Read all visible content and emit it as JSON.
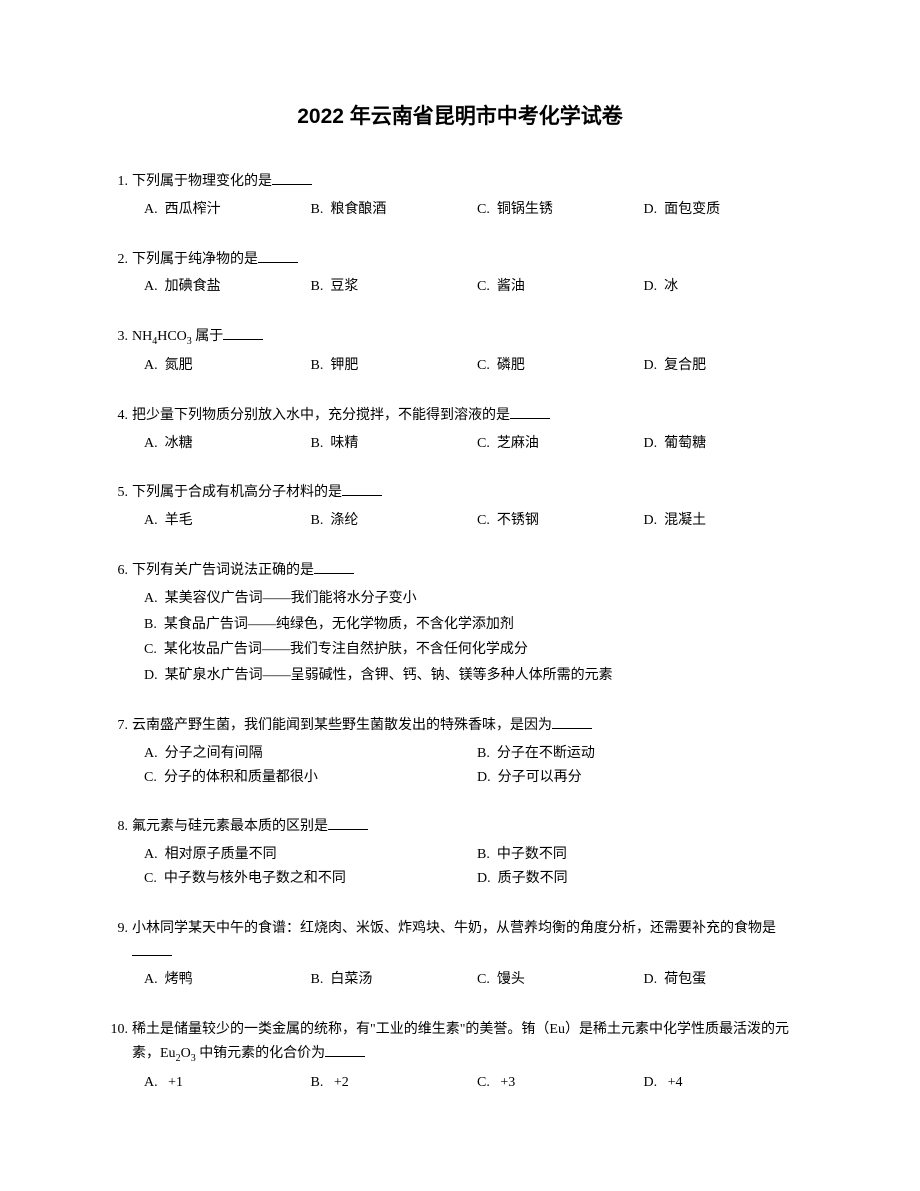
{
  "title": "2022 年云南省昆明市中考化学试卷",
  "questions": [
    {
      "num": "1.",
      "stem": "下列属于物理变化的是",
      "layout": "4",
      "opts": {
        "A": "西瓜榨汁",
        "B": "粮食酿酒",
        "C": "铜锅生锈",
        "D": "面包变质"
      }
    },
    {
      "num": "2.",
      "stem": "下列属于纯净物的是",
      "layout": "4",
      "opts": {
        "A": "加碘食盐",
        "B": "豆浆",
        "C": "酱油",
        "D": "冰"
      }
    },
    {
      "num": "3.",
      "stem_html": "NH<span class='sub'>4</span>HCO<span class='sub'>3</span> 属于",
      "layout": "4",
      "opts": {
        "A": "氮肥",
        "B": "钾肥",
        "C": "磷肥",
        "D": "复合肥"
      }
    },
    {
      "num": "4.",
      "stem": "把少量下列物质分别放入水中，充分搅拌，不能得到溶液的是",
      "layout": "4",
      "opts": {
        "A": "冰糖",
        "B": "味精",
        "C": "芝麻油",
        "D": "葡萄糖"
      }
    },
    {
      "num": "5.",
      "stem": "下列属于合成有机高分子材料的是",
      "layout": "4",
      "opts": {
        "A": "羊毛",
        "B": "涤纶",
        "C": "不锈钢",
        "D": "混凝土"
      }
    },
    {
      "num": "6.",
      "stem": "下列有关广告词说法正确的是",
      "layout": "1",
      "opts": {
        "A": "某美容仪广告词——我们能将水分子变小",
        "B": "某食品广告词——纯绿色，无化学物质，不含化学添加剂",
        "C": "某化妆品广告词——我们专注自然护肤，不含任何化学成分",
        "D": "某矿泉水广告词——呈弱碱性，含钾、钙、钠、镁等多种人体所需的元素"
      }
    },
    {
      "num": "7.",
      "stem": "云南盛产野生菌，我们能闻到某些野生菌散发出的特殊香味，是因为",
      "layout": "2",
      "opts": {
        "A": "分子之间有间隔",
        "B": "分子在不断运动",
        "C": "分子的体积和质量都很小",
        "D": "分子可以再分"
      }
    },
    {
      "num": "8.",
      "stem": "氟元素与硅元素最本质的区别是",
      "layout": "2",
      "opts": {
        "A": "相对原子质量不同",
        "B": "中子数不同",
        "C": "中子数与核外电子数之和不同",
        "D": "质子数不同"
      }
    },
    {
      "num": "9.",
      "stem": "小林同学某天中午的食谱：红烧肉、米饭、炸鸡块、牛奶，从营养均衡的角度分析，还需要补充的食物是",
      "layout": "4",
      "opts": {
        "A": "烤鸭",
        "B": "白菜汤",
        "C": "馒头",
        "D": "荷包蛋"
      }
    },
    {
      "num": "10.",
      "stem_html": "稀土是储量较少的一类金属的统称，有\"工业的维生素\"的美誉。铕（Eu）是稀土元素中化学性质最活泼的元素，Eu<span class='sub'>2</span>O<span class='sub'>3</span> 中铕元素的化合价为",
      "layout": "4",
      "opts": {
        "A": "&nbsp;+1",
        "B": "&nbsp;+2",
        "C": "&nbsp;+3",
        "D": "&nbsp;+4"
      }
    }
  ],
  "colors": {
    "background": "#ffffff",
    "text": "#000000"
  },
  "typography": {
    "title_fontsize": 21,
    "body_fontsize": 14,
    "title_font": "SimHei",
    "body_font": "SimSun"
  }
}
